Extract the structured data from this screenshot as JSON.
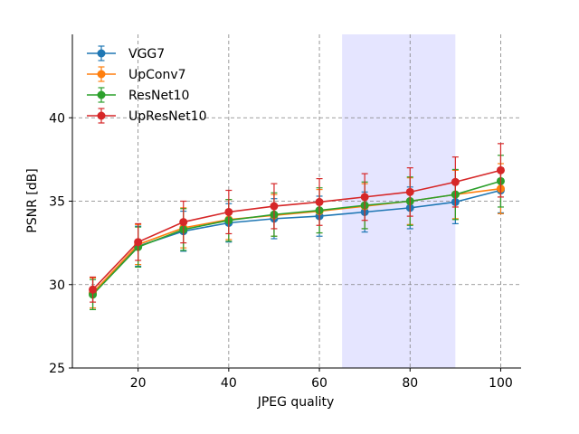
{
  "chart_data": {
    "type": "line",
    "title": "",
    "xlabel": "JPEG quality",
    "ylabel": "PSNR [dB]",
    "xlim": [
      5.5,
      104.5
    ],
    "ylim": [
      25,
      45
    ],
    "xticks": [
      20,
      40,
      60,
      80,
      100
    ],
    "yticks": [
      25,
      30,
      35,
      40
    ],
    "grid": true,
    "legend_position": "top-left",
    "shaded_region": {
      "x_start": 65,
      "x_end": 90,
      "color": "#e5e5ff"
    },
    "x": [
      10,
      20,
      30,
      40,
      50,
      60,
      70,
      80,
      90,
      100
    ],
    "series": [
      {
        "name": "VGG7",
        "color": "#1f77b4",
        "values": [
          29.5,
          32.3,
          33.2,
          33.7,
          33.95,
          34.1,
          34.35,
          34.6,
          34.95,
          35.65
        ],
        "errors": [
          0.9,
          1.2,
          1.2,
          1.15,
          1.2,
          1.2,
          1.2,
          1.25,
          1.3,
          1.35
        ]
      },
      {
        "name": "UpConv7",
        "color": "#ff7f0e",
        "values": [
          29.5,
          32.4,
          33.4,
          33.9,
          34.15,
          34.4,
          34.7,
          35.0,
          35.4,
          35.75
        ],
        "errors": [
          0.9,
          1.2,
          1.2,
          1.2,
          1.25,
          1.3,
          1.35,
          1.4,
          1.45,
          1.5
        ]
      },
      {
        "name": "ResNet10",
        "color": "#2ca02c",
        "values": [
          29.4,
          32.25,
          33.3,
          33.85,
          34.2,
          34.45,
          34.75,
          35.0,
          35.4,
          36.2
        ],
        "errors": [
          0.9,
          1.2,
          1.25,
          1.25,
          1.3,
          1.35,
          1.4,
          1.45,
          1.5,
          1.55
        ]
      },
      {
        "name": "UpResNet10",
        "color": "#d62728",
        "values": [
          29.7,
          32.55,
          33.75,
          34.35,
          34.7,
          34.95,
          35.25,
          35.55,
          36.15,
          36.85
        ],
        "errors": [
          0.75,
          1.1,
          1.25,
          1.3,
          1.35,
          1.4,
          1.4,
          1.45,
          1.5,
          1.6
        ]
      }
    ]
  }
}
